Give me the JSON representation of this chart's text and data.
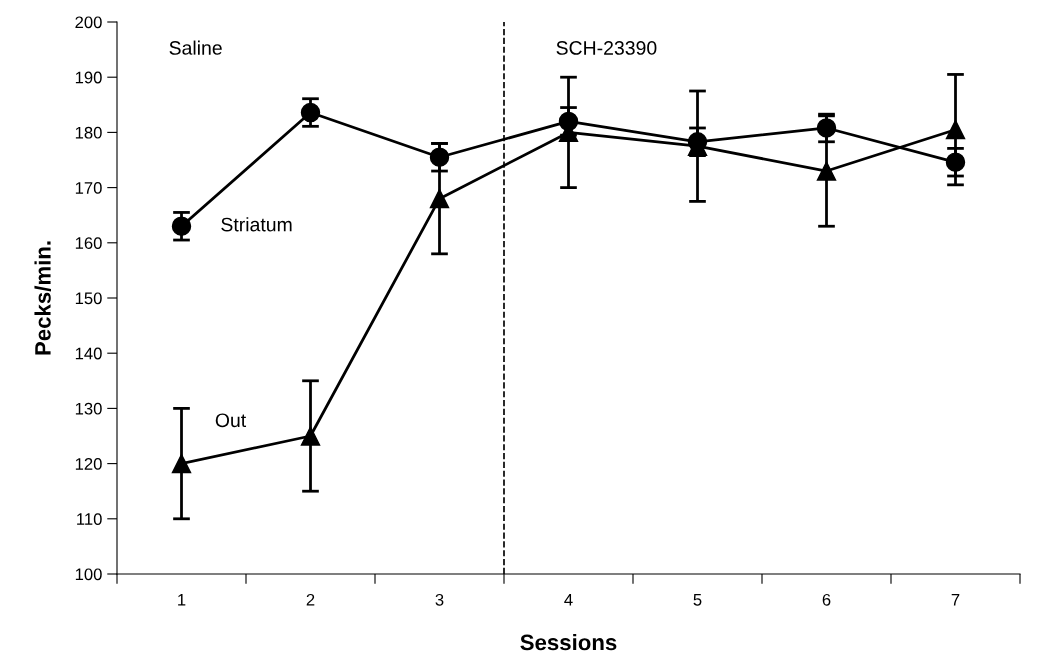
{
  "chart_data": {
    "type": "line",
    "xlabel": "Sessions",
    "ylabel": "Pecks/min.",
    "x": [
      1,
      2,
      3,
      4,
      5,
      6,
      7
    ],
    "series": [
      {
        "name": "Striatum",
        "color": "#000000",
        "marker": "circle",
        "values": [
          163,
          183.6,
          175.5,
          182,
          178.3,
          180.8,
          174.6
        ],
        "errors": [
          2.5,
          2.5,
          2.5,
          2.5,
          2.5,
          2.5,
          2.5
        ]
      },
      {
        "name": "Out",
        "color": "#000000",
        "marker": "triangle",
        "values": [
          120,
          125,
          168,
          180,
          177.5,
          173,
          180.5
        ],
        "errors": [
          10,
          10,
          10,
          10,
          10,
          10,
          10
        ]
      }
    ],
    "xlim": [
      0.5,
      7.5
    ],
    "xticks": [
      {
        "value": 0.5,
        "label": null
      },
      {
        "value": 1,
        "label": "1"
      },
      {
        "value": 1.5,
        "label": null
      },
      {
        "value": 2,
        "label": "2"
      },
      {
        "value": 2.5,
        "label": null
      },
      {
        "value": 3,
        "label": "3"
      },
      {
        "value": 3.5,
        "label": null
      },
      {
        "value": 4,
        "label": "4"
      },
      {
        "value": 4.5,
        "label": null
      },
      {
        "value": 5,
        "label": "5"
      },
      {
        "value": 5.5,
        "label": null
      },
      {
        "value": 6,
        "label": "6"
      },
      {
        "value": 6.5,
        "label": null
      },
      {
        "value": 7,
        "label": "7"
      },
      {
        "value": 7.5,
        "label": null
      }
    ],
    "ylim": [
      100,
      200
    ],
    "yticks": [
      100,
      110,
      120,
      130,
      140,
      150,
      160,
      170,
      180,
      190,
      200
    ],
    "ref_lines": [
      {
        "axis": "x",
        "value": 3.5,
        "color": "#000000",
        "line_style": "dashed"
      }
    ],
    "annotations": [
      "Saline",
      "SCH-23390"
    ],
    "grid": false,
    "legend": false,
    "line_style": "solid"
  }
}
